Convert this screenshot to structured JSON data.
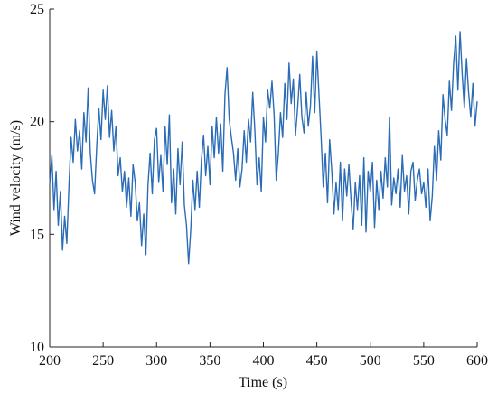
{
  "chart_data": {
    "type": "line",
    "xlabel": "Time (s)",
    "ylabel": "Wind velocity (m/s)",
    "xlim": [
      200,
      600
    ],
    "xticks": [
      200,
      250,
      300,
      350,
      400,
      450,
      500,
      550,
      600
    ],
    "ylim": [
      10,
      25
    ],
    "yticks": [
      10,
      15,
      20,
      25
    ],
    "x": [
      200,
      202,
      204,
      206,
      208,
      210,
      212,
      214,
      216,
      218,
      220,
      222,
      224,
      226,
      228,
      230,
      232,
      234,
      236,
      238,
      240,
      242,
      244,
      246,
      248,
      250,
      252,
      254,
      256,
      258,
      260,
      262,
      264,
      266,
      268,
      270,
      272,
      274,
      276,
      278,
      280,
      282,
      284,
      286,
      288,
      290,
      292,
      294,
      296,
      298,
      300,
      302,
      304,
      306,
      308,
      310,
      312,
      314,
      316,
      318,
      320,
      322,
      324,
      326,
      328,
      330,
      332,
      334,
      336,
      338,
      340,
      342,
      344,
      346,
      348,
      350,
      352,
      354,
      356,
      358,
      360,
      362,
      364,
      366,
      368,
      370,
      372,
      374,
      376,
      378,
      380,
      382,
      384,
      386,
      388,
      390,
      392,
      394,
      396,
      398,
      400,
      402,
      404,
      406,
      408,
      410,
      412,
      414,
      416,
      418,
      420,
      422,
      424,
      426,
      428,
      430,
      432,
      434,
      436,
      438,
      440,
      442,
      444,
      446,
      448,
      450,
      452,
      454,
      456,
      458,
      460,
      462,
      464,
      466,
      468,
      470,
      472,
      474,
      476,
      478,
      480,
      482,
      484,
      486,
      488,
      490,
      492,
      494,
      496,
      498,
      500,
      502,
      504,
      506,
      508,
      510,
      512,
      514,
      516,
      518,
      520,
      522,
      524,
      526,
      528,
      530,
      532,
      534,
      536,
      538,
      540,
      542,
      544,
      546,
      548,
      550,
      552,
      554,
      556,
      558,
      560,
      562,
      564,
      566,
      568,
      570,
      572,
      574,
      576,
      578,
      580,
      582,
      584,
      586,
      588,
      590,
      592,
      594,
      596,
      598,
      600
    ],
    "series": [
      {
        "color": "#2b6cb6",
        "values": [
          17.2,
          18.5,
          16.1,
          17.8,
          15.4,
          16.9,
          14.3,
          15.8,
          14.6,
          17.1,
          19.3,
          18.2,
          20.1,
          18.7,
          19.6,
          17.9,
          20.4,
          19.1,
          21.5,
          18.6,
          17.4,
          16.8,
          18.9,
          20.6,
          19.2,
          21.4,
          20.1,
          21.6,
          19.3,
          20.5,
          18.7,
          19.8,
          17.6,
          18.4,
          16.9,
          17.8,
          16.2,
          17.5,
          15.8,
          18.1,
          17.3,
          15.6,
          16.4,
          14.5,
          15.9,
          14.1,
          17.2,
          18.6,
          16.8,
          19.2,
          19.7,
          17.3,
          18.5,
          16.9,
          19.8,
          18.1,
          20.3,
          16.4,
          17.9,
          15.9,
          18.8,
          17.2,
          19.1,
          16.3,
          15.4,
          13.7,
          15.2,
          17.4,
          16.1,
          17.8,
          16.2,
          18.3,
          19.4,
          17.6,
          18.9,
          17.2,
          19.8,
          18.4,
          20.2,
          18.6,
          19.9,
          17.8,
          21.2,
          22.4,
          20.1,
          19.3,
          18.6,
          17.4,
          18.8,
          17.1,
          17.9,
          19.6,
          18.2,
          20.1,
          19.1,
          21.3,
          19.6,
          17.2,
          18.4,
          16.9,
          20.2,
          19.1,
          21.4,
          20.6,
          21.8,
          20.3,
          17.4,
          18.6,
          20.4,
          19.3,
          21.7,
          20.1,
          22.6,
          20.8,
          21.9,
          19.4,
          20.6,
          22.1,
          20.2,
          19.5,
          21.3,
          19.8,
          20.7,
          22.9,
          20.4,
          23.1,
          21.2,
          19.3,
          17.1,
          18.6,
          16.4,
          19.2,
          17.8,
          15.9,
          17.3,
          16.1,
          18.2,
          15.6,
          17.9,
          16.7,
          18.1,
          16.5,
          15.2,
          17.3,
          16.1,
          17.6,
          15.4,
          18.4,
          15.1,
          17.8,
          16.9,
          18.2,
          15.3,
          17.4,
          16.1,
          17.8,
          16.6,
          18.4,
          17.1,
          20.2,
          16.3,
          17.5,
          16.8,
          17.9,
          16.2,
          18.5,
          16.9,
          17.6,
          15.9,
          17.8,
          18.2,
          16.5,
          17.4,
          17.9,
          16.8,
          17.3,
          16.2,
          17.9,
          15.6,
          16.7,
          18.9,
          17.4,
          19.6,
          18.3,
          21.2,
          20.1,
          19.4,
          21.8,
          20.5,
          22.6,
          23.8,
          21.4,
          24.0,
          22.1,
          20.6,
          22.8,
          21.3,
          20.2,
          21.7,
          19.8,
          20.9
        ]
      }
    ]
  }
}
